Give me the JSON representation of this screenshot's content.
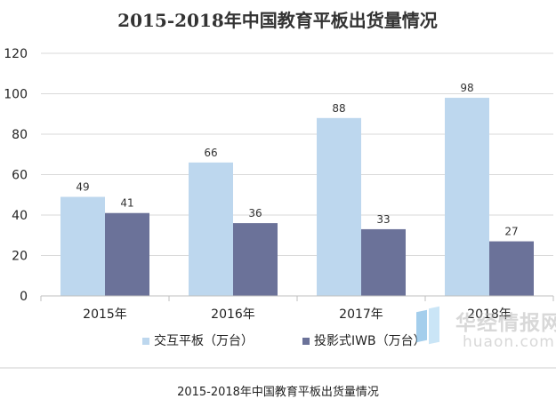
{
  "chart_data": {
    "type": "bar",
    "title": "2015-2018年中国教育平板出货量情况",
    "categories": [
      "2015年",
      "2016年",
      "2017年",
      "2018年"
    ],
    "series": [
      {
        "name": "交互平板（万台）",
        "values": [
          49,
          66,
          88,
          98
        ],
        "color": "#bdd7ee"
      },
      {
        "name": "投影式IWB（万台）",
        "values": [
          41,
          36,
          33,
          27
        ],
        "color": "#6b7299"
      }
    ],
    "ylim": [
      0,
      120
    ],
    "yticks": [
      0,
      20,
      40,
      60,
      80,
      100,
      120
    ],
    "grid": true,
    "legend": "bottom",
    "xlabel": "",
    "ylabel": ""
  },
  "caption": "2015-2018年中国教育平板出货量情况",
  "watermark": {
    "cn": "华经情报网",
    "en": "huaon.com"
  }
}
